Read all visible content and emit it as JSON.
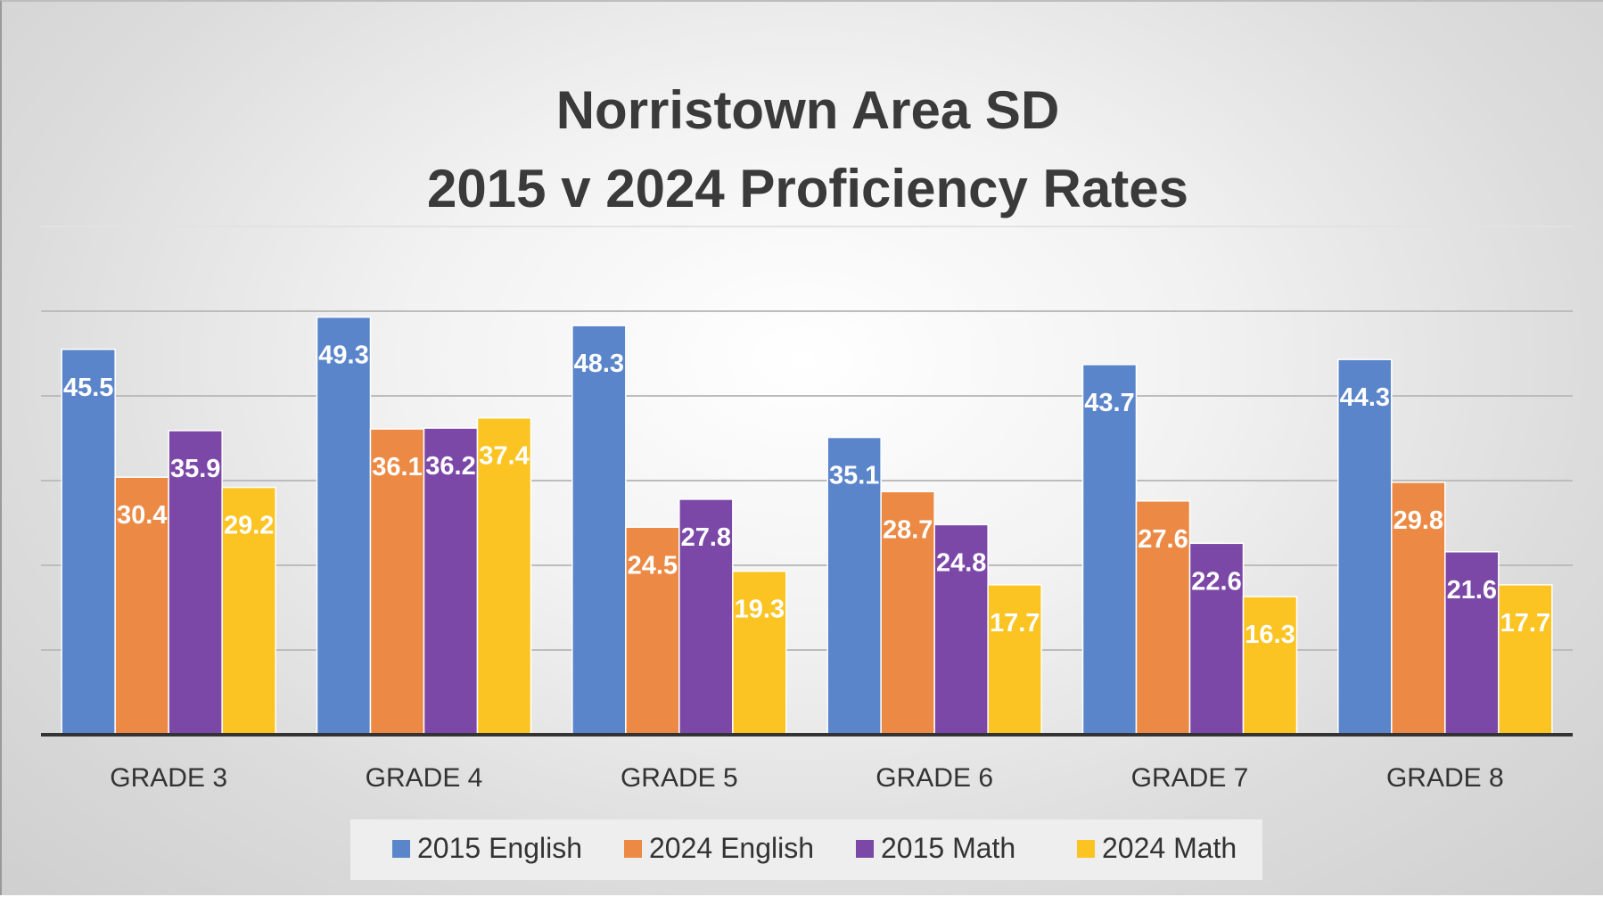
{
  "chart_data": {
    "type": "bar",
    "title": [
      "Norristown Area SD",
      "2015 v 2024 Proficiency Rates"
    ],
    "categories": [
      "GRADE 3",
      "GRADE 4",
      "GRADE 5",
      "GRADE 6",
      "GRADE 7",
      "GRADE 8"
    ],
    "series": [
      {
        "name": "2015 English",
        "color": "#5b85cb",
        "values": [
          45.5,
          49.3,
          48.3,
          35.1,
          43.7,
          44.3
        ]
      },
      {
        "name": "2024 English",
        "color": "#ec8a45",
        "values": [
          30.4,
          36.1,
          24.5,
          28.7,
          27.6,
          29.8
        ]
      },
      {
        "name": "2015 Math",
        "color": "#7b48a8",
        "values": [
          35.9,
          36.2,
          27.8,
          24.8,
          22.6,
          21.6
        ]
      },
      {
        "name": "2024 Math",
        "color": "#fbc423",
        "values": [
          29.2,
          37.4,
          19.3,
          17.7,
          16.3,
          17.7
        ]
      }
    ],
    "ylim": [
      0,
      60
    ],
    "grid": true,
    "xlabel": "",
    "ylabel": "",
    "legend": "bottom"
  }
}
